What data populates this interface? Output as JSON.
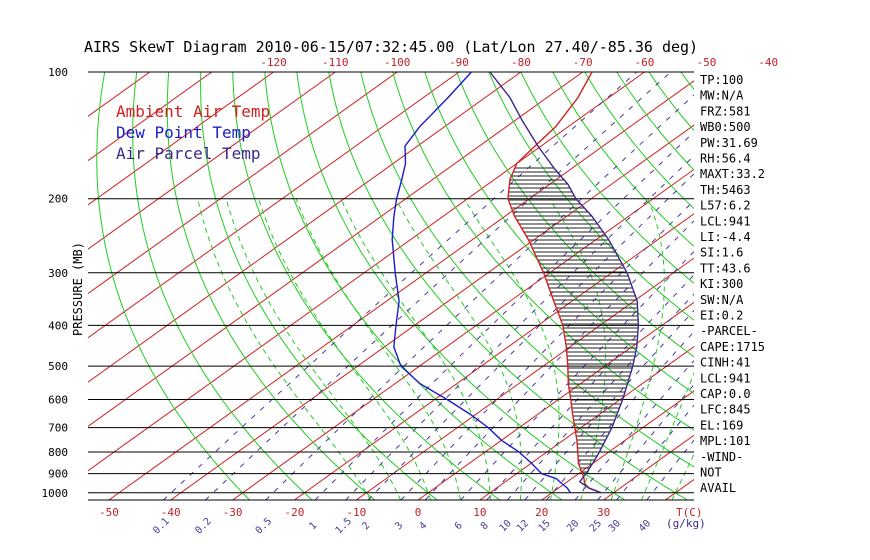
{
  "chart_data": {
    "type": "line",
    "title": "AIRS SkewT Diagram 2010-06-15/07:32:45.00 (Lat/Lon 27.40/-85.36 deg)",
    "ylabel": "PRESSURE (MB)",
    "xlabel": "T(C)",
    "y_scale": "log",
    "ylim": [
      1040,
      100
    ],
    "xlim": [
      -55,
      43
    ],
    "skew_deg_per_pressure_decade": 95,
    "bottom_temp_ticks": [
      "-50",
      "-40",
      "-30",
      "-20",
      "-10",
      "0",
      "10",
      "20",
      "30"
    ],
    "top_temp_ticks": [
      "-120",
      "-110",
      "-100",
      "-90",
      "-80",
      "-70",
      "-60",
      "-50",
      "-40"
    ],
    "pressure_ticks": [
      "100",
      "200",
      "300",
      "400",
      "500",
      "600",
      "700",
      "800",
      "900",
      "1000"
    ],
    "mixing_ratio_labels": [
      "0.1",
      "0.2",
      "0.5",
      "1",
      "1.5",
      "2",
      "3",
      "4",
      "6",
      "8",
      "10",
      "12",
      "15",
      "20",
      "25",
      "30",
      "40"
    ],
    "mixing_ratio_unit": "(g/kg)",
    "legend": [
      {
        "label": "Ambient Air Temp",
        "color": "#d02020"
      },
      {
        "label": "Dew Point Temp",
        "color": "#1b1bcc"
      },
      {
        "label": "Air Parcel Temp",
        "color": "#3b2a8a"
      }
    ],
    "series": [
      {
        "name": "Ambient Air Temp",
        "color": "#d02020",
        "points": [
          [
            1000,
            28
          ],
          [
            975,
            25
          ],
          [
            950,
            23.2
          ],
          [
            925,
            22
          ],
          [
            900,
            20.6
          ],
          [
            850,
            17.6
          ],
          [
            800,
            15
          ],
          [
            750,
            12.2
          ],
          [
            700,
            9
          ],
          [
            650,
            5.6
          ],
          [
            600,
            2
          ],
          [
            550,
            -2
          ],
          [
            500,
            -6
          ],
          [
            450,
            -10.6
          ],
          [
            400,
            -16
          ],
          [
            350,
            -23
          ],
          [
            300,
            -31
          ],
          [
            250,
            -41
          ],
          [
            220,
            -48.5
          ],
          [
            200,
            -53.5
          ],
          [
            180,
            -57.5
          ],
          [
            165,
            -60
          ],
          [
            150,
            -61
          ],
          [
            135,
            -62
          ],
          [
            115,
            -65
          ],
          [
            100,
            -68.5
          ]
        ]
      },
      {
        "name": "Dew Point Temp",
        "color": "#1b1bcc",
        "points": [
          [
            1000,
            23
          ],
          [
            975,
            21.5
          ],
          [
            950,
            19.5
          ],
          [
            925,
            17.5
          ],
          [
            900,
            14
          ],
          [
            850,
            10
          ],
          [
            800,
            5.5
          ],
          [
            750,
            0
          ],
          [
            700,
            -5
          ],
          [
            650,
            -11
          ],
          [
            600,
            -18
          ],
          [
            550,
            -26
          ],
          [
            500,
            -33
          ],
          [
            450,
            -38.5
          ],
          [
            400,
            -43
          ],
          [
            350,
            -48
          ],
          [
            300,
            -55
          ],
          [
            250,
            -63
          ],
          [
            220,
            -68
          ],
          [
            200,
            -71.5
          ],
          [
            180,
            -75
          ],
          [
            165,
            -78
          ],
          [
            150,
            -82
          ],
          [
            135,
            -84
          ],
          [
            115,
            -86
          ],
          [
            100,
            -88
          ]
        ]
      },
      {
        "name": "Air Parcel Temp",
        "color": "#3b2a8a",
        "points": [
          [
            1000,
            28
          ],
          [
            975,
            25
          ],
          [
            941,
            22
          ],
          [
            900,
            21.2
          ],
          [
            845,
            19.8
          ],
          [
            800,
            18.5
          ],
          [
            700,
            15
          ],
          [
            600,
            10.4
          ],
          [
            500,
            4.5
          ],
          [
            450,
            0.8
          ],
          [
            400,
            -3.8
          ],
          [
            350,
            -9.5
          ],
          [
            300,
            -17.5
          ],
          [
            250,
            -28
          ],
          [
            220,
            -36
          ],
          [
            200,
            -42.5
          ],
          [
            185,
            -47
          ],
          [
            169,
            -53
          ],
          [
            150,
            -60.5
          ],
          [
            130,
            -69
          ],
          [
            115,
            -76
          ],
          [
            100,
            -85
          ]
        ]
      }
    ],
    "cape_hatch": {
      "from_pressure": 941,
      "to_pressure": 169
    },
    "dry_adiabat_thetas_c": [
      -30,
      -20,
      -10,
      0,
      10,
      20,
      30,
      40,
      50,
      60,
      70,
      80,
      90,
      100,
      110,
      120,
      130,
      140,
      150,
      160,
      170,
      180,
      190,
      200,
      210,
      220,
      230,
      240,
      250,
      260,
      270
    ],
    "moist_adiabat_starts_c": [
      -10,
      -5,
      0,
      5,
      10,
      15,
      20,
      25,
      30,
      35,
      40
    ],
    "right_panel": [
      "TP:100",
      "MW:N/A",
      "FRZ:581",
      "WB0:500",
      "PW:31.69",
      "RH:56.4",
      "MAXT:33.2",
      "TH:5463",
      "L57:6.2",
      "LCL:941",
      "LI:-4.4",
      "SI:1.6",
      "TT:43.6",
      "KI:300",
      "SW:N/A",
      "EI:0.2",
      "-PARCEL-",
      "CAPE:1715",
      "CINH:41",
      "LCL:941",
      "CAP:0.0",
      "LFC:845",
      "EL:169",
      "MPL:101",
      "-WIND-",
      "NOT",
      "AVAIL"
    ],
    "colors": {
      "isotherm": "#d02020",
      "dry_adiabat": "#22cc22",
      "moist_adiabat": "#22cc22",
      "mixing_ratio": "#4a3a9a",
      "isobar": "#000000"
    }
  }
}
